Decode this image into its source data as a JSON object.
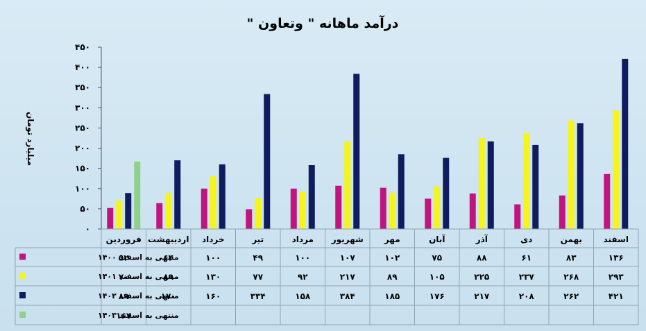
{
  "chart_data": {
    "type": "bar",
    "title": "درآمد ماهانه \" وتعاون \"",
    "ylabel": "میلیارد تومان",
    "ylim": [
      0,
      450
    ],
    "yticks": [
      "۰",
      "۵۰",
      "۱۰۰",
      "۱۵۰",
      "۲۰۰",
      "۲۵۰",
      "۳۰۰",
      "۳۵۰",
      "۴۰۰",
      "۴۵۰"
    ],
    "ytick_values": [
      0,
      50,
      100,
      150,
      200,
      250,
      300,
      350,
      400,
      450
    ],
    "grid": false,
    "legend": "bottom-data-table",
    "categories": [
      "فروردین",
      "اردیبهشت",
      "خرداد",
      "تیر",
      "مرداد",
      "شهریور",
      "مهر",
      "آبان",
      "آذر",
      "دی",
      "بهمن",
      "اسفند"
    ],
    "series": [
      {
        "name": "منتهی به اسفند ۱۴۰۰",
        "color": "#c0157f",
        "values": [
          52,
          64,
          100,
          49,
          100,
          107,
          102,
          75,
          88,
          61,
          83,
          136
        ],
        "labels": [
          "۵۲",
          "۶۴",
          "۱۰۰",
          "۴۹",
          "۱۰۰",
          "۱۰۷",
          "۱۰۲",
          "۷۵",
          "۸۸",
          "۶۱",
          "۸۳",
          "۱۳۶"
        ]
      },
      {
        "name": "منتهی به اسفند ۱۴۰۱",
        "color": "#f5f51b",
        "values": [
          70,
          89,
          130,
          77,
          92,
          217,
          89,
          105,
          225,
          237,
          268,
          293
        ],
        "labels": [
          "۷۰",
          "۸۹",
          "۱۳۰",
          "۷۷",
          "۹۲",
          "۲۱۷",
          "۸۹",
          "۱۰۵",
          "۲۲۵",
          "۲۳۷",
          "۲۶۸",
          "۲۹۳"
        ]
      },
      {
        "name": "منتهی به اسفند ۱۴۰۲",
        "color": "#0f1c5e",
        "values": [
          89,
          170,
          160,
          334,
          158,
          384,
          185,
          176,
          217,
          208,
          262,
          421
        ],
        "labels": [
          "۸۹",
          "۱۷۰",
          "۱۶۰",
          "۳۳۴",
          "۱۵۸",
          "۳۸۴",
          "۱۸۵",
          "۱۷۶",
          "۲۱۷",
          "۲۰۸",
          "۲۶۲",
          "۴۲۱"
        ]
      },
      {
        "name": "منتهی به اسفند ۱۴۰۳",
        "color": "#8fd18a",
        "values": [
          167,
          null,
          null,
          null,
          null,
          null,
          null,
          null,
          null,
          null,
          null,
          null
        ],
        "labels": [
          "۱۶۷",
          "",
          "",
          "",
          "",
          "",
          "",
          "",
          "",
          "",
          "",
          ""
        ]
      }
    ]
  }
}
